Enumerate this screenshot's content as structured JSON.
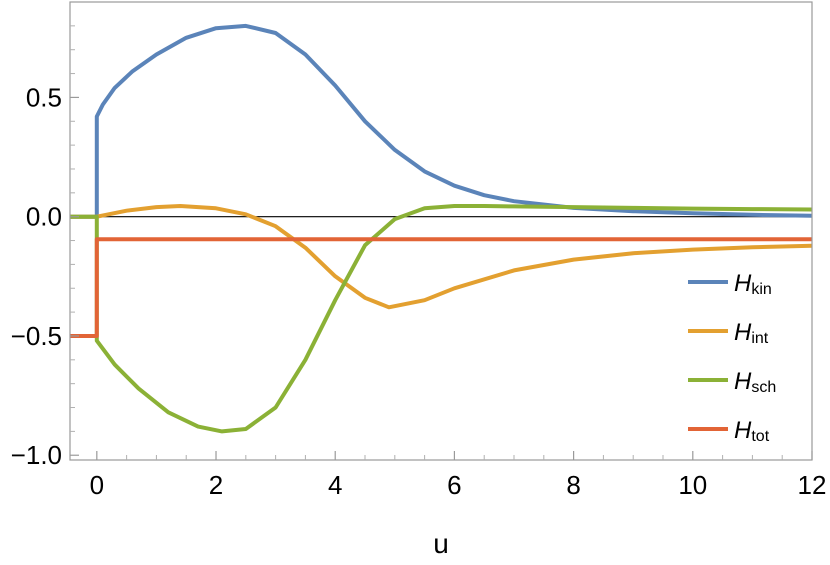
{
  "chart_data": {
    "type": "line",
    "title": "",
    "xlabel": "u",
    "ylabel": "",
    "xlim": [
      -0.45,
      12
    ],
    "ylim": [
      -1.02,
      0.9
    ],
    "x_ticks": [
      0,
      2,
      4,
      6,
      8,
      10,
      12
    ],
    "x_tick_labels": [
      "0",
      "2",
      "4",
      "6",
      "8",
      "10",
      "12"
    ],
    "y_ticks": [
      -1.0,
      -0.5,
      0.0,
      0.5
    ],
    "y_tick_labels": [
      "−1.0",
      "−0.5",
      "0.0",
      "0.5"
    ],
    "zero_line": true,
    "legend_position": "right",
    "grid": false,
    "series": [
      {
        "name": "H",
        "subscript": "kin",
        "color": "#5b84b9",
        "x": [
          -0.45,
          0,
          0,
          0.1,
          0.3,
          0.6,
          1.0,
          1.5,
          2.0,
          2.5,
          3.0,
          3.5,
          4.0,
          4.5,
          5.0,
          5.5,
          6.0,
          6.5,
          7.0,
          8.0,
          9.0,
          10.0,
          11.0,
          12.0
        ],
        "y": [
          0.0,
          0.0,
          0.42,
          0.47,
          0.54,
          0.61,
          0.68,
          0.75,
          0.79,
          0.8,
          0.77,
          0.68,
          0.55,
          0.4,
          0.28,
          0.19,
          0.13,
          0.09,
          0.065,
          0.037,
          0.023,
          0.014,
          0.008,
          0.004
        ]
      },
      {
        "name": "H",
        "subscript": "int",
        "color": "#e3a030",
        "x": [
          -0.45,
          0,
          0.5,
          1.0,
          1.4,
          2.0,
          2.5,
          3.0,
          3.5,
          4.0,
          4.5,
          4.9,
          5.5,
          6.0,
          7.0,
          8.0,
          9.0,
          10.0,
          11.0,
          12.0
        ],
        "y": [
          0.0,
          0.0,
          0.025,
          0.04,
          0.045,
          0.035,
          0.01,
          -0.04,
          -0.13,
          -0.25,
          -0.34,
          -0.38,
          -0.35,
          -0.3,
          -0.225,
          -0.18,
          -0.153,
          -0.138,
          -0.128,
          -0.122
        ]
      },
      {
        "name": "H",
        "subscript": "sch",
        "color": "#8bb136",
        "x": [
          -0.45,
          0,
          0,
          0.3,
          0.7,
          1.2,
          1.7,
          2.1,
          2.5,
          3.0,
          3.5,
          4.0,
          4.5,
          5.0,
          5.5,
          6.0,
          6.5,
          7.0,
          8.0,
          9.0,
          10.0,
          11.0,
          12.0
        ],
        "y": [
          0.0,
          0.0,
          -0.52,
          -0.62,
          -0.72,
          -0.82,
          -0.88,
          -0.9,
          -0.89,
          -0.8,
          -0.6,
          -0.35,
          -0.12,
          -0.01,
          0.035,
          0.045,
          0.045,
          0.043,
          0.04,
          0.037,
          0.034,
          0.032,
          0.03
        ]
      },
      {
        "name": "H",
        "subscript": "tot",
        "color": "#e26436",
        "x": [
          -0.45,
          0,
          0,
          12.0
        ],
        "y": [
          -0.5,
          -0.5,
          -0.095,
          -0.095
        ]
      }
    ]
  }
}
